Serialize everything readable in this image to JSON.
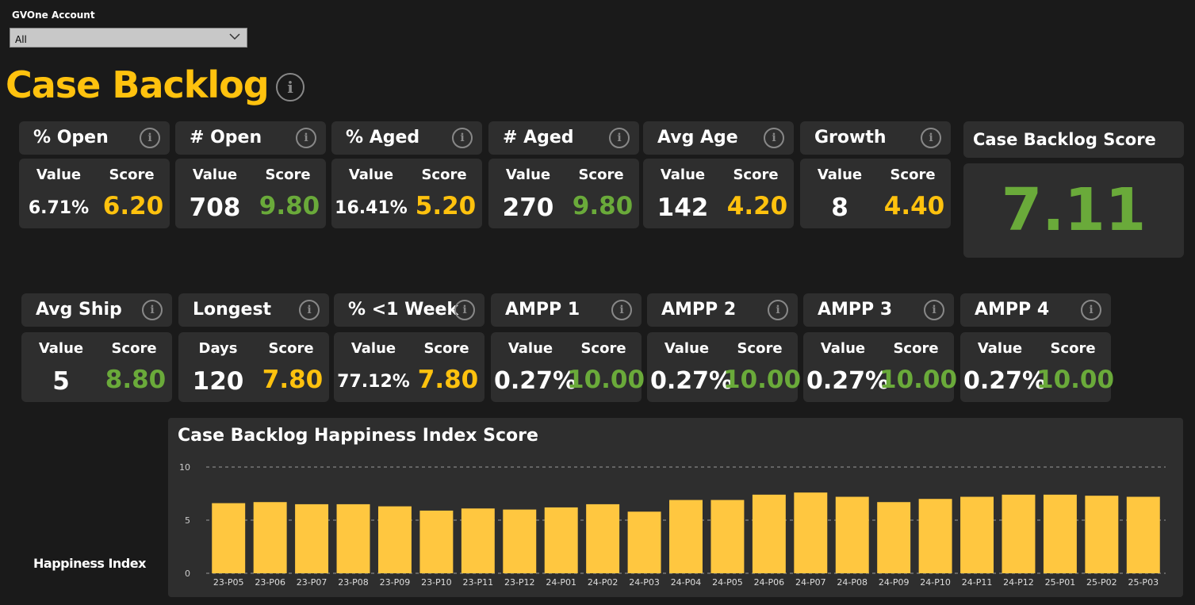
{
  "filter": {
    "label": "GVOne Account",
    "value": "All"
  },
  "page_title": "Case Backlog",
  "row1": [
    {
      "title": "% Open",
      "col1_label": "Value",
      "col2_label": "Score",
      "value": "6.71%",
      "score": "6.20",
      "score_color": "#ffc20e"
    },
    {
      "title": "# Open",
      "col1_label": "Value",
      "col2_label": "Score",
      "value": "708",
      "score": "9.80",
      "score_color": "#6aaa3a"
    },
    {
      "title": "% Aged",
      "col1_label": "Value",
      "col2_label": "Score",
      "value": "16.41%",
      "score": "5.20",
      "score_color": "#ffc20e"
    },
    {
      "title": "# Aged",
      "col1_label": "Value",
      "col2_label": "Score",
      "value": "270",
      "score": "9.80",
      "score_color": "#6aaa3a"
    },
    {
      "title": "Avg Age",
      "col1_label": "Value",
      "col2_label": "Score",
      "value": "142",
      "score": "4.20",
      "score_color": "#ffc20e"
    },
    {
      "title": "Growth",
      "col1_label": "Value",
      "col2_label": "Score",
      "value": "8",
      "score": "4.40",
      "score_color": "#ffc20e"
    }
  ],
  "row2": [
    {
      "title": "Avg Ship",
      "col1_label": "Value",
      "col2_label": "Score",
      "value": "5",
      "score": "8.80",
      "score_color": "#6aaa3a"
    },
    {
      "title": "Longest",
      "col1_label": "Days",
      "col2_label": "Score",
      "value": "120",
      "score": "7.80",
      "score_color": "#ffc20e"
    },
    {
      "title": "% <1 Week",
      "col1_label": "Value",
      "col2_label": "Score",
      "value": "77.12%",
      "score": "7.80",
      "score_color": "#ffc20e"
    },
    {
      "title": "AMPP 1",
      "col1_label": "Value",
      "col2_label": "Score",
      "value": "0.27%",
      "score": "10.00",
      "score_color": "#6aaa3a"
    },
    {
      "title": "AMPP 2",
      "col1_label": "Value",
      "col2_label": "Score",
      "value": "0.27%",
      "score": "10.00",
      "score_color": "#6aaa3a"
    },
    {
      "title": "AMPP 3",
      "col1_label": "Value",
      "col2_label": "Score",
      "value": "0.27%",
      "score": "10.00",
      "score_color": "#6aaa3a"
    },
    {
      "title": "AMPP 4",
      "col1_label": "Value",
      "col2_label": "Score",
      "value": "0.27%",
      "score": "10.00",
      "score_color": "#6aaa3a"
    }
  ],
  "backlog_score": {
    "title": "Case Backlog Score",
    "value": "7.11"
  },
  "side_label": "Happiness Index",
  "chart_data": {
    "type": "bar",
    "title": "Case Backlog Happiness Index Score",
    "xlabel": "",
    "ylabel": "",
    "ylim": [
      0,
      10
    ],
    "yticks": [
      0,
      5,
      10
    ],
    "grid": true,
    "bar_color": "#ffc740",
    "categories": [
      "23-P05",
      "23-P06",
      "23-P07",
      "23-P08",
      "23-P09",
      "23-P10",
      "23-P11",
      "23-P12",
      "24-P01",
      "24-P02",
      "24-P03",
      "24-P04",
      "24-P05",
      "24-P06",
      "24-P07",
      "24-P08",
      "24-P09",
      "24-P10",
      "24-P11",
      "24-P12",
      "25-P01",
      "25-P02",
      "25-P03"
    ],
    "values": [
      6.6,
      6.7,
      6.5,
      6.5,
      6.3,
      5.9,
      6.1,
      6.0,
      6.2,
      6.5,
      5.8,
      6.9,
      6.9,
      7.4,
      7.6,
      7.2,
      6.7,
      7.0,
      7.2,
      7.4,
      7.4,
      7.3,
      7.2
    ]
  }
}
